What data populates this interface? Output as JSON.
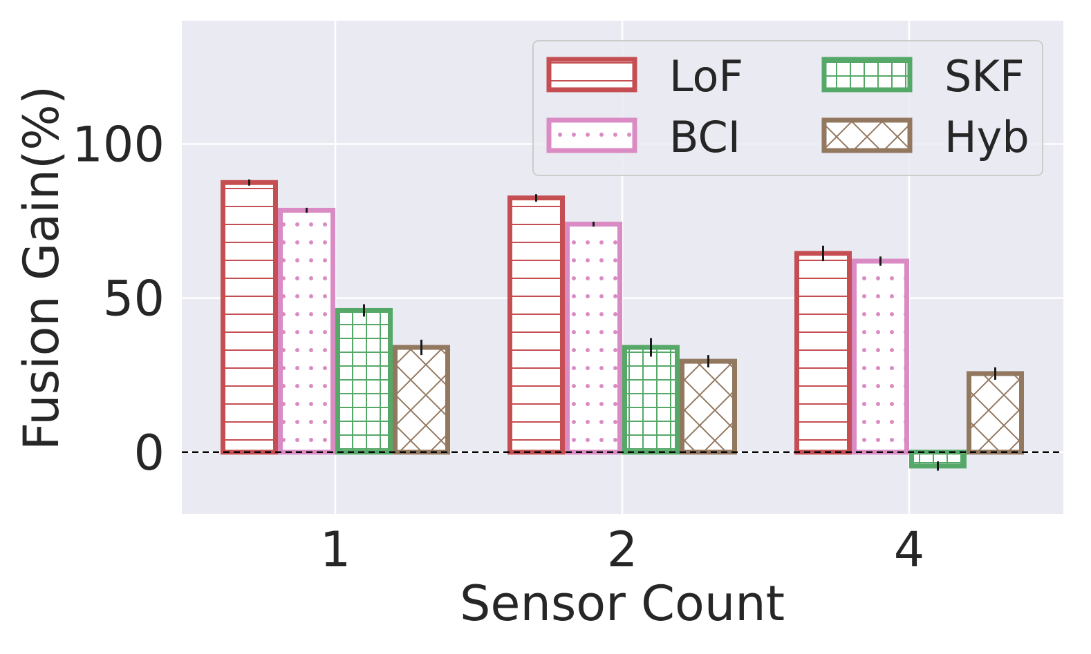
{
  "chart_data": {
    "type": "bar",
    "title": "",
    "xlabel": "Sensor Count",
    "ylabel": "Fusion Gain(%)",
    "categories": [
      "1",
      "2",
      "4"
    ],
    "ylim": [
      -20,
      140
    ],
    "yticks": [
      0,
      50,
      100
    ],
    "grid": true,
    "legend_position": "top-right",
    "baseline": 0,
    "series": [
      {
        "name": "LoF",
        "color": "#C44E52",
        "hatch": "horizontal",
        "values": [
          87.5,
          82.5,
          64.5
        ],
        "errors": [
          1.0,
          1.2,
          2.5
        ]
      },
      {
        "name": "BCI",
        "color": "#DA8BC3",
        "hatch": "dots",
        "values": [
          78.5,
          74.0,
          62.0
        ],
        "errors": [
          0.8,
          0.8,
          1.5
        ]
      },
      {
        "name": "SKF",
        "color": "#55A868",
        "hatch": "grid",
        "values": [
          46.0,
          34.0,
          -4.5
        ],
        "errors": [
          2.0,
          3.0,
          1.5
        ]
      },
      {
        "name": "Hyb",
        "color": "#937860",
        "hatch": "cross",
        "values": [
          34.0,
          29.5,
          25.5
        ],
        "errors": [
          2.5,
          2.0,
          2.0
        ]
      }
    ]
  }
}
